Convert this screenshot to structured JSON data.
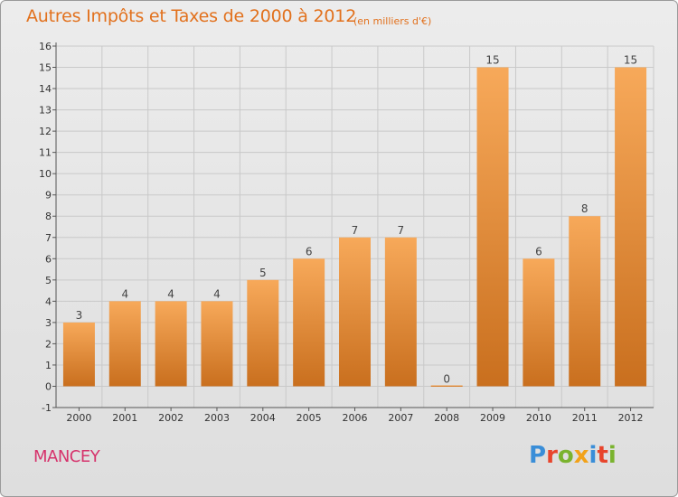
{
  "page": {
    "title": "Autres Impôts et Taxes de 2000 à 2012",
    "subtitle": "(en milliers d'€)",
    "town": "MANCEY",
    "logo": "Proxiti"
  },
  "colors": {
    "bar_light": "#f7a95a",
    "bar_dark": "#c96f1e",
    "title": "#e2711d",
    "town": "#d6336c",
    "grid": "#c9c9c9"
  },
  "chart_data": {
    "type": "bar",
    "title": "Autres Impôts et Taxes de 2000 à 2012",
    "subtitle": "(en milliers d'€)",
    "xlabel": "",
    "ylabel": "",
    "categories": [
      "2000",
      "2001",
      "2002",
      "2003",
      "2004",
      "2005",
      "2006",
      "2007",
      "2008",
      "2009",
      "2010",
      "2011",
      "2012"
    ],
    "values": [
      3,
      4,
      4,
      4,
      5,
      6,
      7,
      7,
      0,
      15,
      6,
      8,
      15
    ],
    "data_labels": [
      "3",
      "4",
      "4",
      "4",
      "5",
      "6",
      "7",
      "7",
      "0",
      "15",
      "6",
      "8",
      "15"
    ],
    "ylim": [
      -1,
      16
    ],
    "yticks": [
      -1,
      0,
      1,
      2,
      3,
      4,
      5,
      6,
      7,
      8,
      9,
      10,
      11,
      12,
      13,
      14,
      15,
      16
    ],
    "grid": true
  }
}
